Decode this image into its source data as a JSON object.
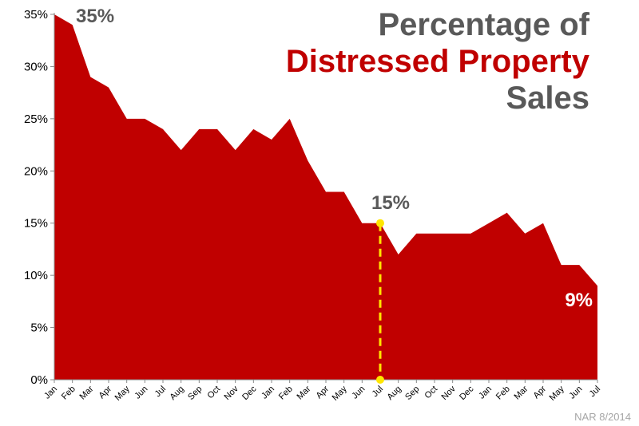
{
  "title": {
    "line1": "Percentage of",
    "line2": "Distressed Property",
    "line3": "Sales"
  },
  "source": "NAR 8/2014",
  "colors": {
    "area": "#c00000",
    "title_gray": "#595959",
    "marker": "#ffe600",
    "callout_gray": "#595959",
    "callout_white": "#ffffff"
  },
  "chart_data": {
    "type": "area",
    "x": [
      "Jan",
      "Feb",
      "Mar",
      "Apr",
      "May",
      "Jun",
      "Jul",
      "Aug",
      "Sep",
      "Oct",
      "Nov",
      "Dec",
      "Jan",
      "Feb",
      "Mar",
      "Apr",
      "May",
      "Jun",
      "Jul",
      "Aug",
      "Sep",
      "Oct",
      "Nov",
      "Dec",
      "Jan",
      "Feb",
      "Mar",
      "Apr",
      "May",
      "Jun",
      "Jul"
    ],
    "series": [
      {
        "values": [
          35,
          34,
          29,
          28,
          25,
          25,
          24,
          22,
          24,
          24,
          22,
          24,
          23,
          25,
          21,
          18,
          18,
          15,
          15,
          12,
          14,
          14,
          14,
          14,
          15,
          16,
          14,
          15,
          11,
          11,
          9
        ]
      }
    ],
    "y_ticks": [
      "0%",
      "5%",
      "10%",
      "15%",
      "20%",
      "25%",
      "30%",
      "35%"
    ],
    "ylim": [
      0,
      35
    ],
    "grid": false,
    "annotations": [
      {
        "text": "35%",
        "index": 0
      },
      {
        "text": "15%",
        "index": 18
      },
      {
        "text": "9%",
        "index": 30
      }
    ]
  }
}
